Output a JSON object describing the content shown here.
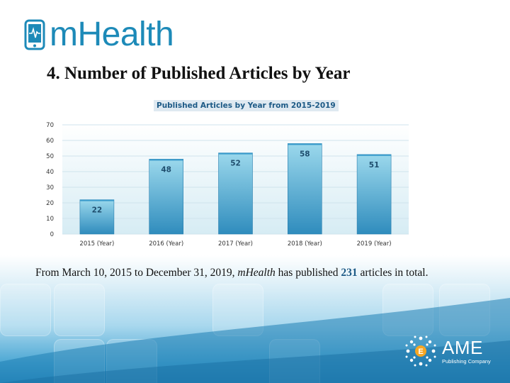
{
  "logo": {
    "text": "mHealth"
  },
  "slide_title": "4. Number of Published Articles by Year",
  "body": {
    "prefix": "From March 10, 2015 to December 31, 2019, ",
    "journal": "mHealth",
    "middle": " has published ",
    "count": "231",
    "suffix": " articles in total."
  },
  "publisher": {
    "name": "AME",
    "tagline": "Publishing Company"
  },
  "colors": {
    "bar_top": "#8fd3ea",
    "bar_bottom": "#2f8cbd",
    "accent": "#1d8ab8"
  },
  "chart_data": {
    "type": "bar",
    "title": "Published Articles by Year from 2015-2019",
    "categories": [
      "2015 (Year)",
      "2016 (Year)",
      "2017 (Year)",
      "2018 (Year)",
      "2019 (Year)"
    ],
    "values": [
      22,
      48,
      52,
      58,
      51
    ],
    "ylim": [
      0,
      70
    ],
    "yticks": [
      0,
      10,
      20,
      30,
      40,
      50,
      60,
      70
    ],
    "grid": true,
    "legend": false
  }
}
